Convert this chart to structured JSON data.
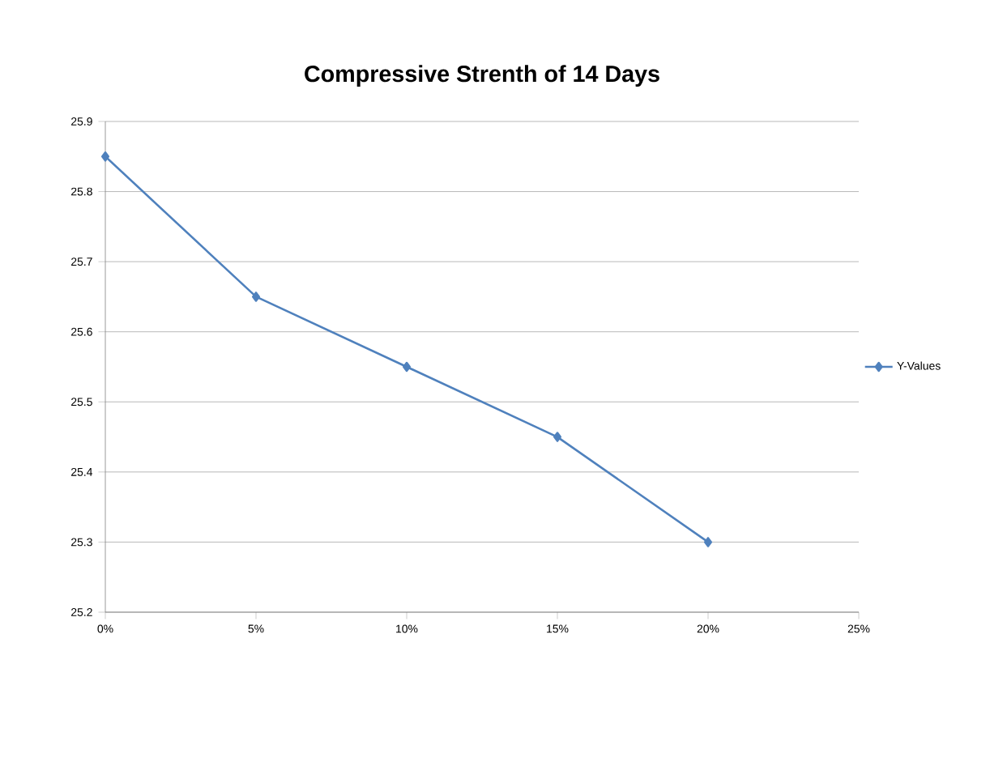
{
  "chart_data": {
    "type": "line",
    "title": "Compressive Strenth of 14 Days",
    "x": [
      0,
      5,
      10,
      15,
      20
    ],
    "series": [
      {
        "name": "Y-Values",
        "color": "#4f81bd",
        "values": [
          25.85,
          25.65,
          25.55,
          25.45,
          25.3
        ]
      }
    ],
    "xlim": [
      0,
      25
    ],
    "xticks": [
      {
        "value": 0,
        "label": "0%"
      },
      {
        "value": 5,
        "label": "5%"
      },
      {
        "value": 10,
        "label": "10%"
      },
      {
        "value": 15,
        "label": "15%"
      },
      {
        "value": 20,
        "label": "20%"
      },
      {
        "value": 25,
        "label": "25%"
      }
    ],
    "ylim": [
      25.2,
      25.9
    ],
    "yticks": [
      25.2,
      25.3,
      25.4,
      25.5,
      25.6,
      25.7,
      25.8,
      25.9
    ],
    "grid": "y",
    "legend": "right",
    "marker": "diamond",
    "line_style": "solid"
  }
}
